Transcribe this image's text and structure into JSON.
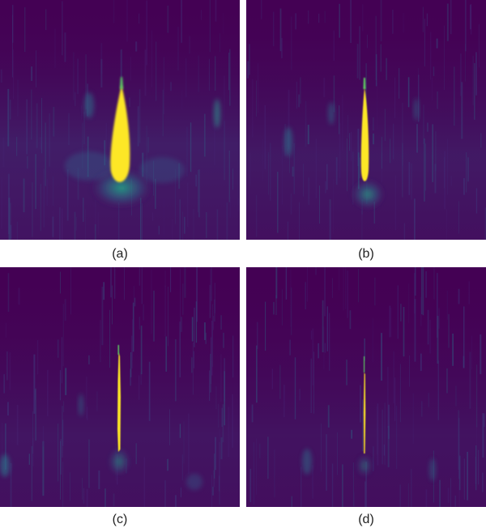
{
  "figure": {
    "colormap": {
      "background": "#440154",
      "mid": "#2a788e",
      "high": "#21918c",
      "peak": "#fde725"
    },
    "panels": [
      {
        "id": "a",
        "caption": "(a)",
        "peak_shape": "broad-teardrop"
      },
      {
        "id": "b",
        "caption": "(b)",
        "peak_shape": "narrow-teardrop"
      },
      {
        "id": "c",
        "caption": "(c)",
        "peak_shape": "thin-streak"
      },
      {
        "id": "d",
        "caption": "(d)",
        "peak_shape": "very-thin-streak"
      }
    ]
  }
}
